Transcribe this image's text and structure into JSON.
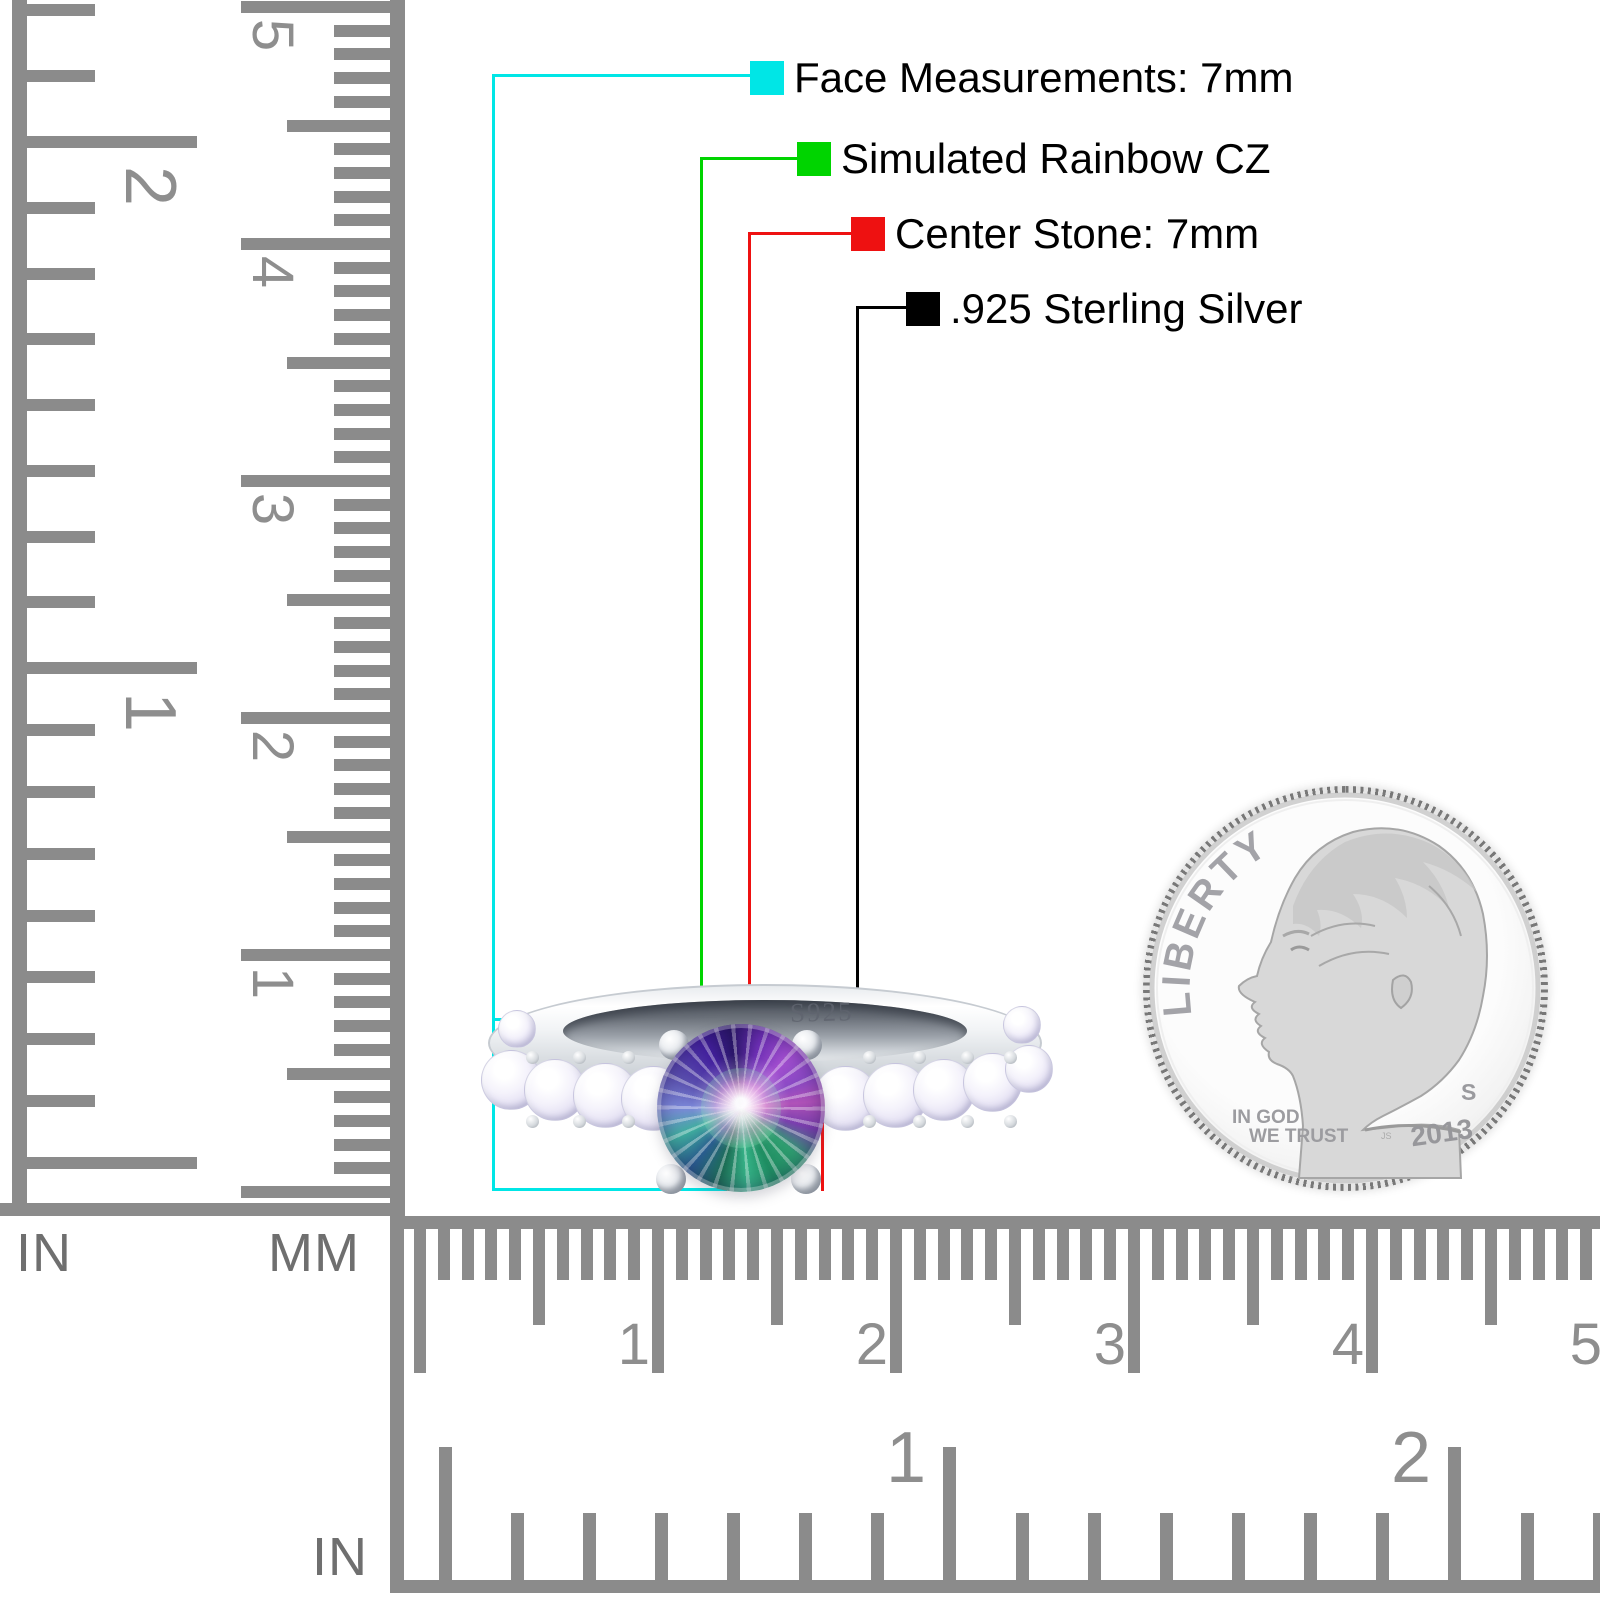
{
  "annotations": {
    "items": [
      {
        "label": "Face Measurements: 7mm",
        "color": "#00e6e6"
      },
      {
        "label": "Simulated Rainbow CZ",
        "color": "#00d400"
      },
      {
        "label": "Center Stone: 7mm",
        "color": "#ee1111"
      },
      {
        "label": ".925 Sterling Silver",
        "color": "#000000"
      }
    ]
  },
  "ring": {
    "engraving": "S925"
  },
  "coin": {
    "legend": "LIBERTY",
    "motto_line1": "IN GOD",
    "motto_line2": "WE TRUST",
    "mint_mark": "S",
    "date": "2013",
    "designer_initials": "JS"
  },
  "rulers": {
    "left_inch": {
      "unit_label": "IN",
      "numbers": [
        "2",
        "1"
      ]
    },
    "left_mm": {
      "unit_label": "MM",
      "numbers": [
        "5",
        "4",
        "3",
        "2",
        "1"
      ]
    },
    "bottom_mm": {
      "numbers": [
        "1",
        "2",
        "3",
        "4",
        "5"
      ]
    },
    "bottom_inch": {
      "unit_label": "IN",
      "numbers": [
        "1",
        "2"
      ]
    },
    "tick_color": "#8b8b8b",
    "number_color": "#8e8e8e",
    "label_color": "#6f6f6f"
  }
}
